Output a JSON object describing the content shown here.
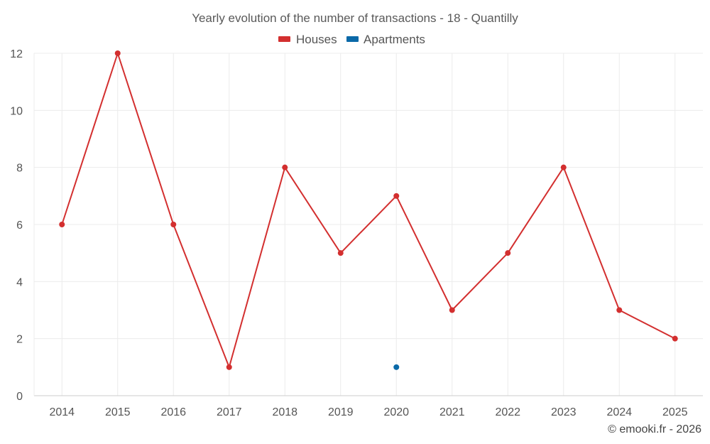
{
  "chart_data": {
    "type": "line",
    "title": "Yearly evolution of the number of transactions - 18 - Quantilly",
    "categories": [
      "2014",
      "2015",
      "2016",
      "2017",
      "2018",
      "2019",
      "2020",
      "2021",
      "2022",
      "2023",
      "2024",
      "2025"
    ],
    "series": [
      {
        "name": "Houses",
        "color": "#d32f2f",
        "values": [
          6,
          12,
          6,
          1,
          8,
          5,
          7,
          3,
          5,
          8,
          3,
          2
        ]
      },
      {
        "name": "Apartments",
        "color": "#0a69a8",
        "values": [
          null,
          null,
          null,
          null,
          null,
          null,
          1,
          null,
          null,
          null,
          null,
          null
        ]
      }
    ],
    "ylim": [
      0,
      12
    ],
    "yticks": [
      0,
      2,
      4,
      6,
      8,
      10,
      12
    ],
    "grid": true,
    "legend_position": "top-center"
  },
  "credit": "© emooki.fr - 2026"
}
